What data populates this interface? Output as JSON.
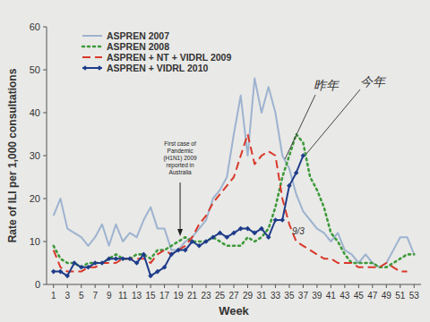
{
  "chart_data": {
    "type": "line",
    "x_label": "Week",
    "y_label": "Rate of ILI per 1,000 consultations",
    "x": [
      1,
      2,
      3,
      4,
      5,
      6,
      7,
      8,
      9,
      10,
      11,
      12,
      13,
      14,
      15,
      16,
      17,
      18,
      19,
      20,
      21,
      22,
      23,
      24,
      25,
      26,
      27,
      28,
      29,
      30,
      31,
      32,
      33,
      34,
      35,
      36,
      37,
      38,
      39,
      40,
      41,
      42,
      43,
      44,
      45,
      46,
      47,
      48,
      49,
      50,
      51,
      52,
      53
    ],
    "xlim": [
      0,
      54
    ],
    "xticks": [
      1,
      3,
      5,
      7,
      9,
      11,
      13,
      15,
      17,
      19,
      21,
      23,
      25,
      27,
      29,
      31,
      33,
      35,
      37,
      39,
      41,
      43,
      45,
      47,
      49,
      51,
      53
    ],
    "ylim": [
      0,
      60
    ],
    "yticks": [
      0,
      10,
      20,
      30,
      40,
      50,
      60
    ],
    "grid": false,
    "legend": "upper left",
    "series": [
      {
        "name": "ASPREN 2007",
        "color": "#9db3cf",
        "line_style": "solid",
        "values": [
          16,
          20,
          13,
          12,
          11,
          9,
          11,
          14,
          9,
          14,
          10,
          12,
          11,
          15,
          18,
          13,
          13,
          8,
          8,
          10,
          11,
          13,
          15,
          20,
          22,
          25,
          35,
          44,
          30,
          48,
          40,
          46,
          40,
          30,
          27,
          21,
          17,
          15,
          13,
          12,
          10,
          12,
          8,
          7,
          5,
          7,
          5,
          4,
          5,
          8,
          11,
          11,
          7
        ]
      },
      {
        "name": "ASPREN 2008",
        "color": "#3d9a3a",
        "line_style": "dotted",
        "values": [
          9,
          6,
          5,
          5,
          4,
          5,
          5,
          5,
          6,
          7,
          6,
          6,
          7,
          7,
          6,
          8,
          8,
          9,
          10,
          11,
          10,
          10,
          10,
          11,
          10,
          9,
          9,
          9,
          11,
          10,
          11,
          13,
          18,
          25,
          30,
          35,
          33,
          25,
          22,
          18,
          12,
          10,
          7,
          5,
          5,
          5,
          5,
          4,
          4,
          5,
          6,
          7,
          7
        ]
      },
      {
        "name": "ASPREN + NT + VIDRL 2009",
        "color": "#d8392a",
        "line_style": "dashed",
        "values": [
          8,
          4,
          3,
          3,
          3,
          4,
          4,
          5,
          5,
          5,
          6,
          6,
          6,
          6,
          5,
          7,
          8,
          7,
          8,
          9,
          11,
          14,
          16,
          19,
          21,
          23,
          25,
          30,
          35,
          28,
          30,
          31,
          30,
          20,
          14,
          10,
          9,
          8,
          7,
          6,
          6,
          5,
          5,
          5,
          4,
          4,
          4,
          4,
          5,
          4,
          3,
          3,
          null
        ]
      },
      {
        "name": "ASPREN + VIDRL 2010",
        "color": "#1f3c8a",
        "line_style": "solid",
        "marker": "diamond",
        "values": [
          3,
          3,
          2,
          5,
          4,
          4,
          5,
          5,
          6,
          6,
          6,
          6,
          5,
          7,
          2,
          3,
          4,
          7,
          8,
          8,
          10,
          9,
          10,
          11,
          12,
          11,
          12,
          13,
          13,
          12,
          13,
          11,
          15,
          15,
          23,
          26,
          30,
          null,
          null,
          null,
          null,
          null,
          null,
          null,
          null,
          null,
          null,
          null,
          null,
          null,
          null,
          null,
          null
        ]
      }
    ],
    "annotations": [
      {
        "text": [
          "First case of",
          "Pandemic",
          "(H1N1) 2009",
          "reported in",
          "Australia"
        ]
      },
      {
        "text": [
          "昨年"
        ]
      },
      {
        "text": [
          "今年"
        ]
      },
      {
        "text": [
          "9/3"
        ]
      }
    ]
  }
}
